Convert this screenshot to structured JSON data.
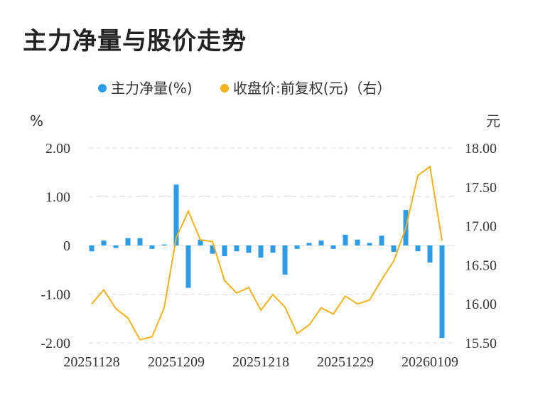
{
  "title": "主力净量与股价走势",
  "colors": {
    "bar": "#2e9be6",
    "line": "#f2b21b",
    "grid": "#dddddd",
    "axis_text": "#333333"
  },
  "chart_data": {
    "type": "bar+line",
    "title": "主力净量与股价走势",
    "legend": {
      "position": "top",
      "items": [
        "主力净量(%)",
        "收盘价:前复权(元)（右）"
      ]
    },
    "left_axis": {
      "unit": "%",
      "ylim": [
        -2.0,
        2.0
      ],
      "ticks": [
        "2.00",
        "1.00",
        "0",
        "-1.00",
        "-2.00"
      ],
      "tick_values": [
        2,
        1,
        0,
        -1,
        -2
      ]
    },
    "right_axis": {
      "unit": "元",
      "ylim": [
        15.5,
        18.0
      ],
      "ticks": [
        "18.00",
        "17.50",
        "17.00",
        "16.50",
        "16.00",
        "15.50"
      ],
      "tick_values": [
        18,
        17.5,
        17,
        16.5,
        16,
        15.5
      ]
    },
    "x_tick_labels": [
      {
        "index": 0,
        "label": "20251128"
      },
      {
        "index": 7,
        "label": "20251209"
      },
      {
        "index": 14,
        "label": "20251218"
      },
      {
        "index": 21,
        "label": "20251229"
      },
      {
        "index": 28,
        "label": "20260109"
      }
    ],
    "grid": true,
    "series": [
      {
        "name": "主力净量(%)",
        "type": "bar",
        "axis": "left",
        "values": [
          -0.12,
          0.1,
          -0.05,
          0.15,
          0.15,
          -0.07,
          0.02,
          1.25,
          -0.87,
          0.12,
          -0.17,
          -0.22,
          -0.12,
          -0.15,
          -0.25,
          -0.15,
          -0.6,
          -0.07,
          0.05,
          0.1,
          -0.07,
          0.22,
          0.12,
          0.05,
          0.2,
          -0.13,
          0.73,
          -0.12,
          -0.35,
          -1.9
        ]
      },
      {
        "name": "收盘价:前复权(元)（右）",
        "type": "line",
        "axis": "right",
        "values": [
          16.0,
          16.18,
          15.94,
          15.82,
          15.54,
          15.58,
          15.95,
          16.85,
          17.19,
          16.82,
          16.8,
          16.3,
          16.14,
          16.21,
          15.92,
          16.12,
          15.96,
          15.62,
          15.73,
          15.95,
          15.87,
          16.1,
          16.0,
          16.05,
          16.31,
          16.55,
          16.97,
          17.65,
          17.76,
          16.81
        ]
      }
    ]
  }
}
